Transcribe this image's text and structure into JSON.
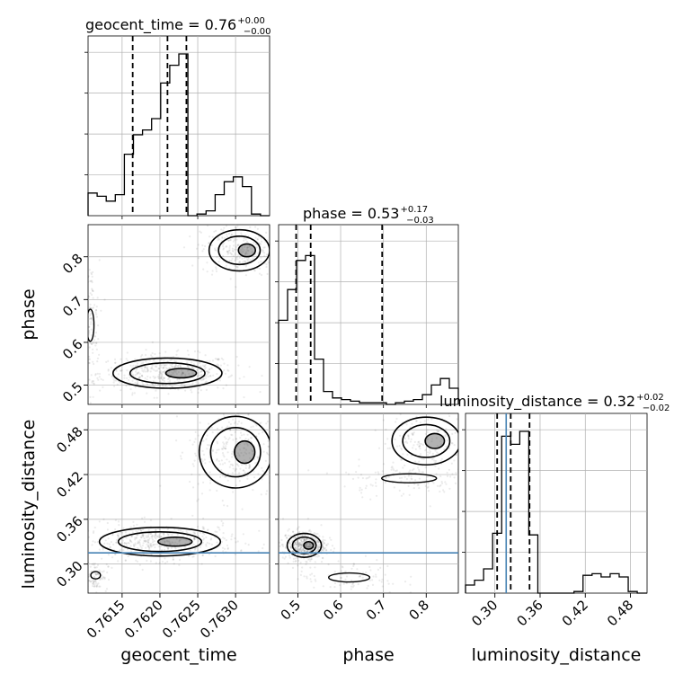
{
  "chart_data": {
    "type": "corner",
    "parameters": [
      "geocent_time",
      "phase",
      "luminosity_distance"
    ],
    "titles": [
      {
        "label": "geocent_time = 0.76",
        "plus": "+0.00",
        "minus": "−0.00"
      },
      {
        "label": "phase = 0.53",
        "plus": "+0.17",
        "minus": "−0.03"
      },
      {
        "label": "luminosity_distance = 0.32",
        "plus": "+0.02",
        "minus": "−0.02"
      }
    ],
    "axes": {
      "geocent_time": {
        "range": [
          0.76105,
          0.76345
        ],
        "ticks": [
          0.7615,
          0.762,
          0.7625,
          0.763
        ],
        "tick_labels": [
          "0.7615",
          "0.7620",
          "0.7625",
          "0.7630"
        ]
      },
      "phase": {
        "range": [
          0.455,
          0.875
        ],
        "ticks": [
          0.5,
          0.6,
          0.7,
          0.8
        ],
        "tick_labels": [
          "0.5",
          "0.6",
          "0.7",
          "0.8"
        ]
      },
      "luminosity_distance": {
        "range": [
          0.261,
          0.502
        ],
        "ticks": [
          0.3,
          0.36,
          0.42,
          0.48
        ],
        "tick_labels": [
          "0.30",
          "0.36",
          "0.42",
          "0.48"
        ]
      }
    },
    "marginals": [
      {
        "param": "geocent_time",
        "bin_edges": [
          0.76105,
          0.76117,
          0.76129,
          0.76141,
          0.76153,
          0.76165,
          0.76177,
          0.76189,
          0.76201,
          0.76213,
          0.76225,
          0.76237,
          0.76249,
          0.76261,
          0.76273,
          0.76285,
          0.76297,
          0.76309,
          0.76321,
          0.76333,
          0.76345
        ],
        "counts": [
          0.14,
          0.12,
          0.09,
          0.13,
          0.38,
          0.5,
          0.53,
          0.6,
          0.82,
          0.93,
          1.0,
          0.0,
          0.01,
          0.03,
          0.13,
          0.21,
          0.24,
          0.18,
          0.01,
          0.0
        ],
        "quantiles": [
          0.76164,
          0.7621,
          0.76235
        ]
      },
      {
        "param": "phase",
        "bin_edges": [
          0.455,
          0.476,
          0.497,
          0.518,
          0.539,
          0.56,
          0.581,
          0.602,
          0.623,
          0.644,
          0.665,
          0.686,
          0.707,
          0.728,
          0.749,
          0.77,
          0.791,
          0.812,
          0.833,
          0.854,
          0.875
        ],
        "counts": [
          0.52,
          0.71,
          0.89,
          0.92,
          0.28,
          0.08,
          0.04,
          0.03,
          0.02,
          0.01,
          0.01,
          0.01,
          0.0,
          0.01,
          0.02,
          0.03,
          0.06,
          0.12,
          0.16,
          0.1
        ],
        "quantiles": [
          0.496,
          0.53,
          0.697
        ]
      },
      {
        "param": "luminosity_distance",
        "bin_edges": [
          0.261,
          0.273,
          0.285,
          0.297,
          0.309,
          0.321,
          0.333,
          0.345,
          0.357,
          0.369,
          0.381,
          0.393,
          0.405,
          0.417,
          0.429,
          0.441,
          0.453,
          0.465,
          0.477,
          0.489,
          0.502
        ],
        "counts": [
          0.05,
          0.08,
          0.15,
          0.37,
          0.97,
          0.92,
          1.0,
          0.36,
          0.0,
          0.0,
          0.0,
          0.0,
          0.01,
          0.11,
          0.12,
          0.1,
          0.12,
          0.1,
          0.01,
          0.0
        ],
        "quantiles": [
          0.303,
          0.321,
          0.346
        ]
      }
    ],
    "joint": [
      {
        "x": "geocent_time",
        "y": "phase",
        "modes": [
          {
            "center": [
              0.7621,
              0.528
            ],
            "spread": [
              0.00045,
              0.022
            ],
            "weight": 0.55
          },
          {
            "center": [
              0.76108,
              0.64
            ],
            "spread": [
              6e-05,
              0.075
            ],
            "weight": 0.15
          },
          {
            "center": [
              0.76305,
              0.815
            ],
            "spread": [
              0.00025,
              0.03
            ],
            "weight": 0.3
          }
        ]
      },
      {
        "x": "geocent_time",
        "y": "luminosity_distance",
        "modes": [
          {
            "center": [
              0.762,
              0.33
            ],
            "spread": [
              0.0005,
              0.012
            ],
            "weight": 0.55
          },
          {
            "center": [
              0.76115,
              0.285
            ],
            "spread": [
              8e-05,
              0.01
            ],
            "weight": 0.1
          },
          {
            "center": [
              0.763,
              0.45
            ],
            "spread": [
              0.0003,
              0.03
            ],
            "weight": 0.35
          }
        ]
      },
      {
        "x": "phase",
        "y": "luminosity_distance",
        "modes": [
          {
            "center": [
              0.515,
              0.325
            ],
            "spread": [
              0.025,
              0.01
            ],
            "weight": 0.55
          },
          {
            "center": [
              0.62,
              0.282
            ],
            "spread": [
              0.06,
              0.012
            ],
            "weight": 0.1
          },
          {
            "center": [
              0.8,
              0.465
            ],
            "spread": [
              0.05,
              0.02
            ],
            "weight": 0.2
          },
          {
            "center": [
              0.76,
              0.415
            ],
            "spread": [
              0.08,
              0.012
            ],
            "weight": 0.15
          }
        ]
      }
    ],
    "truth": {
      "luminosity_distance": 0.315
    },
    "colors": {
      "line": "#000000",
      "truth": "#4682b4",
      "grid": "#b0b0b0"
    },
    "grid": true
  }
}
